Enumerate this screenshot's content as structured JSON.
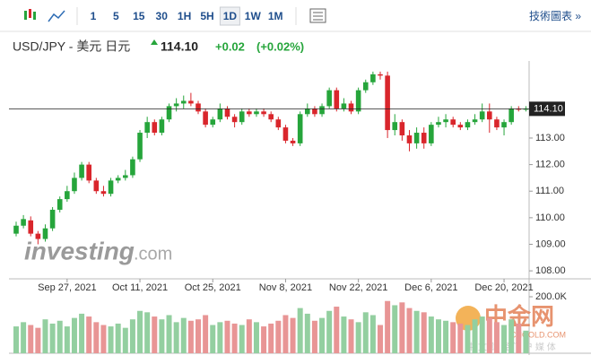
{
  "toolbar": {
    "intervals": [
      "1",
      "5",
      "15",
      "30",
      "1H",
      "5H",
      "1D",
      "1W",
      "1M"
    ],
    "selected": "1D",
    "link": "技術圖表 »"
  },
  "header": {
    "title": "USD/JPY - 美元 日元",
    "price": "114.10",
    "change": "+0.02",
    "change_pct": "(+0.02%)"
  },
  "watermark": {
    "brand": "investing",
    "suffix": ".com",
    "cn_logo": "中金网",
    "cn_site": "CNGOLD.COM",
    "cn_tagline": "中 文 财 经 门 户 媒 体"
  },
  "chart_data": {
    "type": "candlestick",
    "up_color": "#26a53b",
    "down_color": "#d9262c",
    "categories": [
      null,
      null,
      null,
      null,
      null,
      null,
      null,
      "Sep 27, 2021",
      null,
      null,
      null,
      null,
      null,
      null,
      null,
      null,
      null,
      "Oct 11, 2021",
      null,
      null,
      null,
      null,
      null,
      null,
      null,
      null,
      null,
      "Oct 25, 2021",
      null,
      null,
      null,
      null,
      null,
      null,
      null,
      null,
      null,
      "Nov 8, 2021",
      null,
      null,
      null,
      null,
      null,
      null,
      null,
      null,
      null,
      "Nov 22, 2021",
      null,
      null,
      null,
      null,
      null,
      null,
      null,
      null,
      null,
      "Dec 6, 2021",
      null,
      null,
      null,
      null,
      null,
      null,
      null,
      null,
      null,
      "Dec 20, 2021",
      null,
      null,
      null
    ],
    "open": [
      109.4,
      109.7,
      109.9,
      109.4,
      109.2,
      109.6,
      110.3,
      110.7,
      111.0,
      111.5,
      112.0,
      111.4,
      111.0,
      110.9,
      111.4,
      111.5,
      111.6,
      112.2,
      113.2,
      113.6,
      113.2,
      113.7,
      114.2,
      114.3,
      114.4,
      114.3,
      114.0,
      113.5,
      113.7,
      114.1,
      113.8,
      113.6,
      114.0,
      113.9,
      114.0,
      113.9,
      113.7,
      113.4,
      112.9,
      112.8,
      113.9,
      114.1,
      113.9,
      114.2,
      114.8,
      114.1,
      114.3,
      114.0,
      114.8,
      115.1,
      115.4,
      115.35,
      113.3,
      113.6,
      113.1,
      112.8,
      113.2,
      112.8,
      113.5,
      113.6,
      113.7,
      113.5,
      113.4,
      113.6,
      113.7,
      114.0,
      113.7,
      113.4,
      113.6,
      114.1,
      114.08
    ],
    "high": [
      109.85,
      110.1,
      110.05,
      109.5,
      109.75,
      110.4,
      110.8,
      111.2,
      111.7,
      112.1,
      112.1,
      111.5,
      111.2,
      111.5,
      111.6,
      111.8,
      112.3,
      113.3,
      113.8,
      113.7,
      113.8,
      114.3,
      114.5,
      114.6,
      114.7,
      114.4,
      114.1,
      113.8,
      114.3,
      114.2,
      113.9,
      114.1,
      114.1,
      114.1,
      114.1,
      114.0,
      113.8,
      113.5,
      113.0,
      114.0,
      114.3,
      114.2,
      114.3,
      114.9,
      114.9,
      114.5,
      114.4,
      114.9,
      115.2,
      115.5,
      115.5,
      115.5,
      113.9,
      113.7,
      113.3,
      113.4,
      113.4,
      113.6,
      113.8,
      113.9,
      113.8,
      113.6,
      113.7,
      113.9,
      114.3,
      114.3,
      113.8,
      113.7,
      114.2,
      114.2,
      114.2
    ],
    "low": [
      109.3,
      109.6,
      109.3,
      109.0,
      109.1,
      109.5,
      110.2,
      110.6,
      110.9,
      111.4,
      111.3,
      110.9,
      110.8,
      110.8,
      111.3,
      111.4,
      111.5,
      112.1,
      113.0,
      113.1,
      113.1,
      113.6,
      114.0,
      114.1,
      114.2,
      113.9,
      113.4,
      113.4,
      113.6,
      113.7,
      113.4,
      113.5,
      113.8,
      113.8,
      113.8,
      113.6,
      113.3,
      112.8,
      112.7,
      112.7,
      113.8,
      113.8,
      113.8,
      114.1,
      114.0,
      114.0,
      113.9,
      113.9,
      114.7,
      115.0,
      115.2,
      113.0,
      113.1,
      112.9,
      112.5,
      112.6,
      112.6,
      112.7,
      113.4,
      113.4,
      113.4,
      113.3,
      113.3,
      113.5,
      113.6,
      113.2,
      113.3,
      113.1,
      113.5,
      114.0,
      114.0
    ],
    "close": [
      109.7,
      109.95,
      109.4,
      109.2,
      109.6,
      110.3,
      110.7,
      111.0,
      111.5,
      112.0,
      111.4,
      111.0,
      110.9,
      111.4,
      111.5,
      111.6,
      112.2,
      113.2,
      113.6,
      113.2,
      113.7,
      114.2,
      114.3,
      114.4,
      114.3,
      114.0,
      113.5,
      113.7,
      114.1,
      113.8,
      113.6,
      114.0,
      113.9,
      114.0,
      113.9,
      113.7,
      113.4,
      112.9,
      112.8,
      113.9,
      114.1,
      113.9,
      114.2,
      114.8,
      114.1,
      114.3,
      114.0,
      114.8,
      115.1,
      115.4,
      115.35,
      113.3,
      113.6,
      113.1,
      112.8,
      113.2,
      112.8,
      113.5,
      113.6,
      113.7,
      113.5,
      113.4,
      113.6,
      113.7,
      114.0,
      113.7,
      113.4,
      113.6,
      114.1,
      114.08,
      114.1
    ],
    "ylim": [
      107.7,
      115.8
    ],
    "yticks": [
      {
        "value": 108,
        "label": "108.00"
      },
      {
        "value": 109,
        "label": "109.00"
      },
      {
        "value": 110,
        "label": "110.00"
      },
      {
        "value": 111,
        "label": "111.00"
      },
      {
        "value": 112,
        "label": "112.00"
      },
      {
        "value": 113,
        "label": "113.00"
      }
    ],
    "last": {
      "value": 114.1,
      "label": "114.10"
    },
    "grid": false,
    "volume": {
      "up_color": "#93cfa0",
      "down_color": "#e89595",
      "values": [
        95000,
        110000,
        100000,
        90000,
        120000,
        105000,
        115000,
        95000,
        125000,
        140000,
        130000,
        110000,
        100000,
        95000,
        105000,
        90000,
        120000,
        150000,
        145000,
        130000,
        120000,
        135000,
        110000,
        125000,
        115000,
        120000,
        135000,
        100000,
        110000,
        115000,
        105000,
        100000,
        120000,
        110000,
        95000,
        105000,
        115000,
        135000,
        125000,
        160000,
        140000,
        115000,
        125000,
        150000,
        165000,
        130000,
        120000,
        110000,
        145000,
        135000,
        100000,
        185000,
        170000,
        180000,
        160000,
        150000,
        145000,
        130000,
        120000,
        115000,
        110000,
        105000,
        100000,
        120000,
        130000,
        125000,
        110000,
        100000,
        120000,
        105000,
        80000
      ],
      "ylim": [
        0,
        200000
      ],
      "yticks": [
        {
          "value": 200000,
          "label": "200.0K"
        }
      ]
    }
  }
}
